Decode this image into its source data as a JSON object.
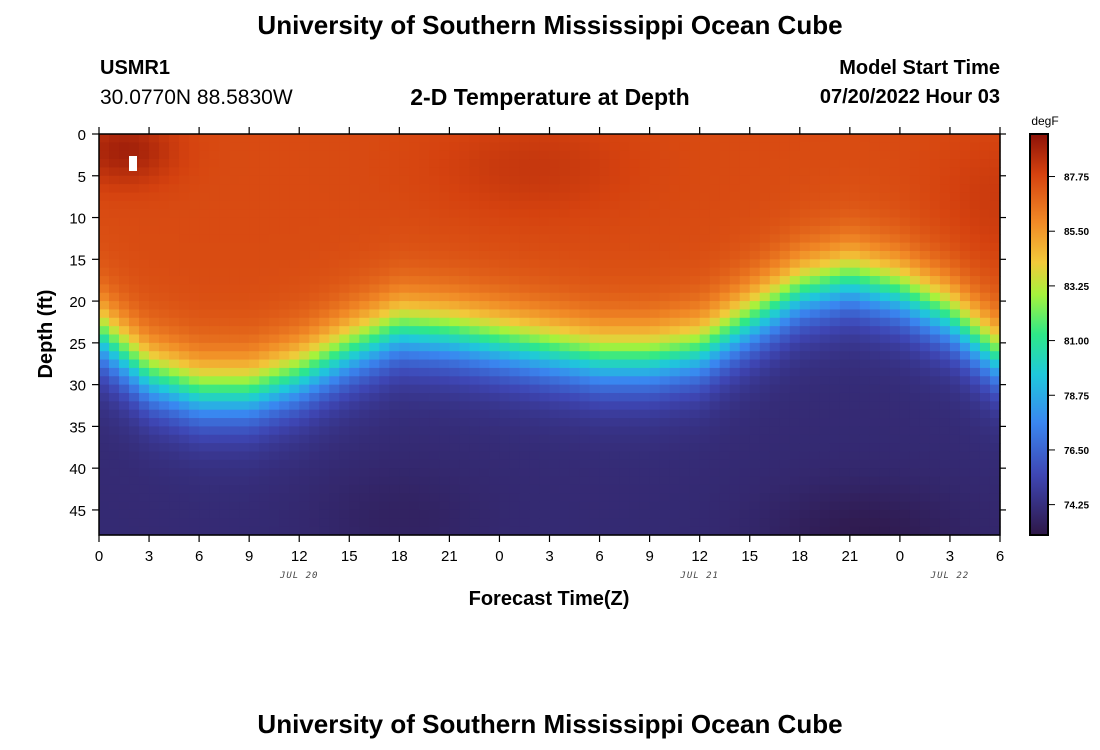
{
  "header": {
    "top_title": "University of Southern Mississippi Ocean Cube",
    "bottom_title": "University of Southern Mississippi Ocean Cube",
    "station_id": "USMR1",
    "station_coords": "30.0770N  88.5830W",
    "model_start_label": "Model Start Time",
    "model_start_value": "07/20/2022 Hour 03"
  },
  "chart_data": {
    "type": "heatmap",
    "title": "2-D Temperature at Depth",
    "xlabel": "Forecast Time(Z)",
    "ylabel": "Depth (ft)",
    "xlim_hours": [
      0,
      54
    ],
    "ylim": [
      0,
      48
    ],
    "x_tick_labels": [
      "0",
      "3",
      "6",
      "9",
      "12",
      "15",
      "18",
      "21",
      "0",
      "3",
      "6",
      "9",
      "12",
      "15",
      "18",
      "21",
      "0",
      "3",
      "6"
    ],
    "y_ticks": [
      0,
      5,
      10,
      15,
      20,
      25,
      30,
      35,
      40,
      45
    ],
    "date_labels": [
      {
        "label": "JUL 20",
        "hour": 12
      },
      {
        "label": "JUL 21",
        "hour": 36
      },
      {
        "label": "JUL 22",
        "hour": 51
      }
    ],
    "colorbar": {
      "unit": "degF",
      "min": 73.0,
      "max": 89.5,
      "ticks": [
        "87.75",
        "85.50",
        "83.25",
        "81.00",
        "78.75",
        "76.50",
        "74.25"
      ],
      "tick_values": [
        87.75,
        85.5,
        83.25,
        81.0,
        78.75,
        76.5,
        74.25
      ]
    },
    "thermocline_depth_ft": {
      "hours": [
        0,
        3,
        6,
        9,
        12,
        15,
        18,
        21,
        24,
        27,
        30,
        33,
        36,
        39,
        42,
        45,
        48,
        51,
        54
      ],
      "values": [
        24,
        29,
        31,
        31,
        29,
        26,
        23.5,
        24,
        25,
        26,
        27,
        27,
        26,
        22.5,
        19,
        17.5,
        19,
        22,
        27
      ]
    },
    "surface_max_temp_f": 89.5,
    "bottom_min_temp_f": 73.0
  }
}
